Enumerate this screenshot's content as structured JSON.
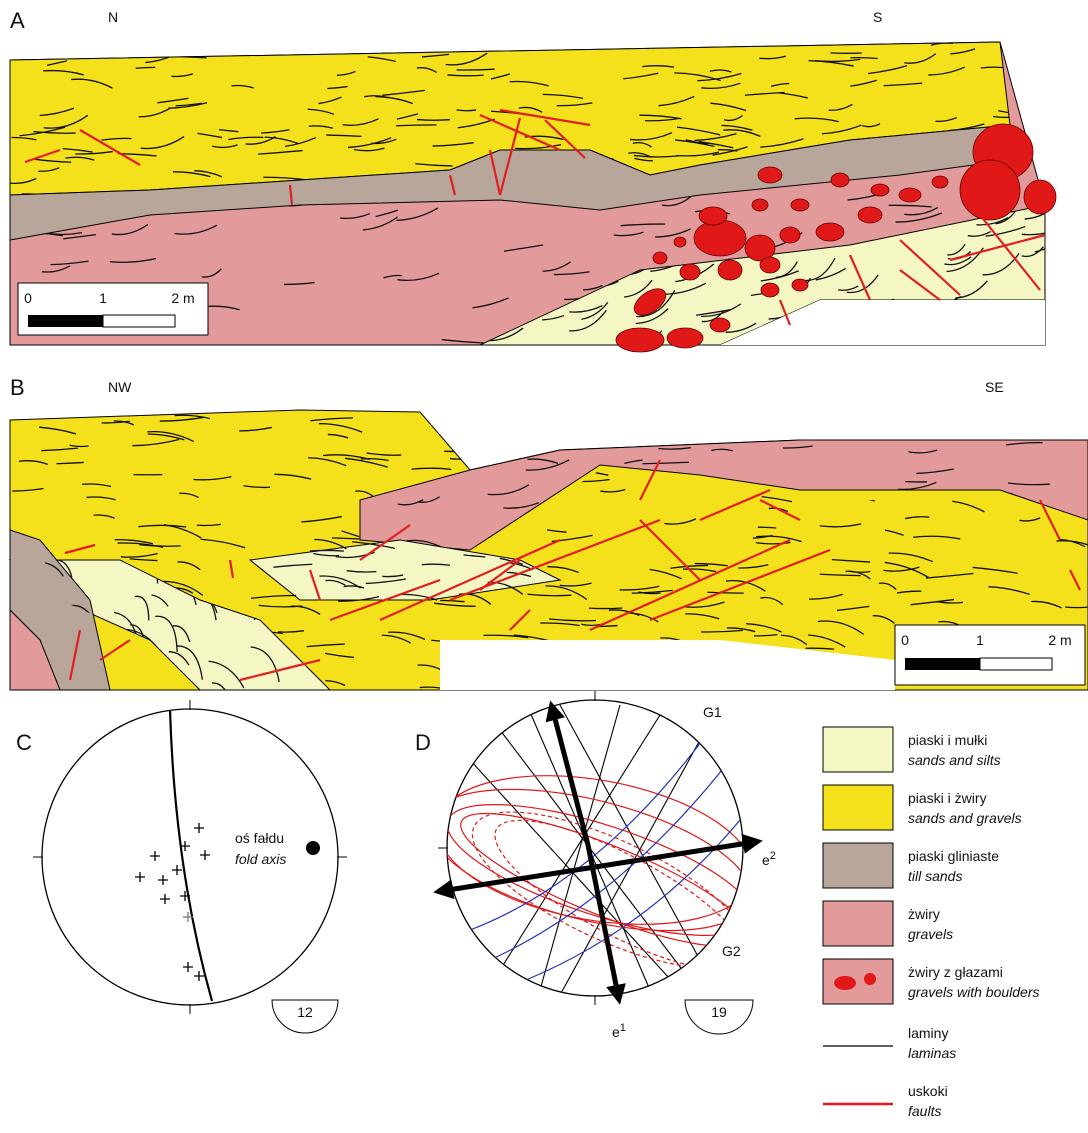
{
  "panels": {
    "a": {
      "label": "A",
      "left": "N",
      "right": "S",
      "scale": [
        "0",
        "1",
        "2 m"
      ]
    },
    "b": {
      "label": "B",
      "left": "NW",
      "right": "SE",
      "scale": [
        "0",
        "1",
        "2 m"
      ]
    },
    "c": {
      "label": "C",
      "annotation": [
        "oś fałdu",
        "fold axis"
      ],
      "count": "12"
    },
    "d": {
      "label": "D",
      "g1": "G1",
      "g2": "G2",
      "e2": {
        "base": "e",
        "sup": "2"
      },
      "e1": {
        "base": "e",
        "sup": "1"
      },
      "count": "19"
    }
  },
  "legend": [
    {
      "pl": "piaski i mułki",
      "en": "sands and silts"
    },
    {
      "pl": "piaski i żwiry",
      "en": "sands and gravels"
    },
    {
      "pl": "piaski gliniaste",
      "en": "till sands"
    },
    {
      "pl": "żwiry",
      "en": "gravels"
    },
    {
      "pl": "żwiry z głazami",
      "en": "gravels with boulders"
    },
    {
      "pl": "laminy",
      "en": "laminas"
    },
    {
      "pl": "uskoki",
      "en": "faults"
    }
  ]
}
